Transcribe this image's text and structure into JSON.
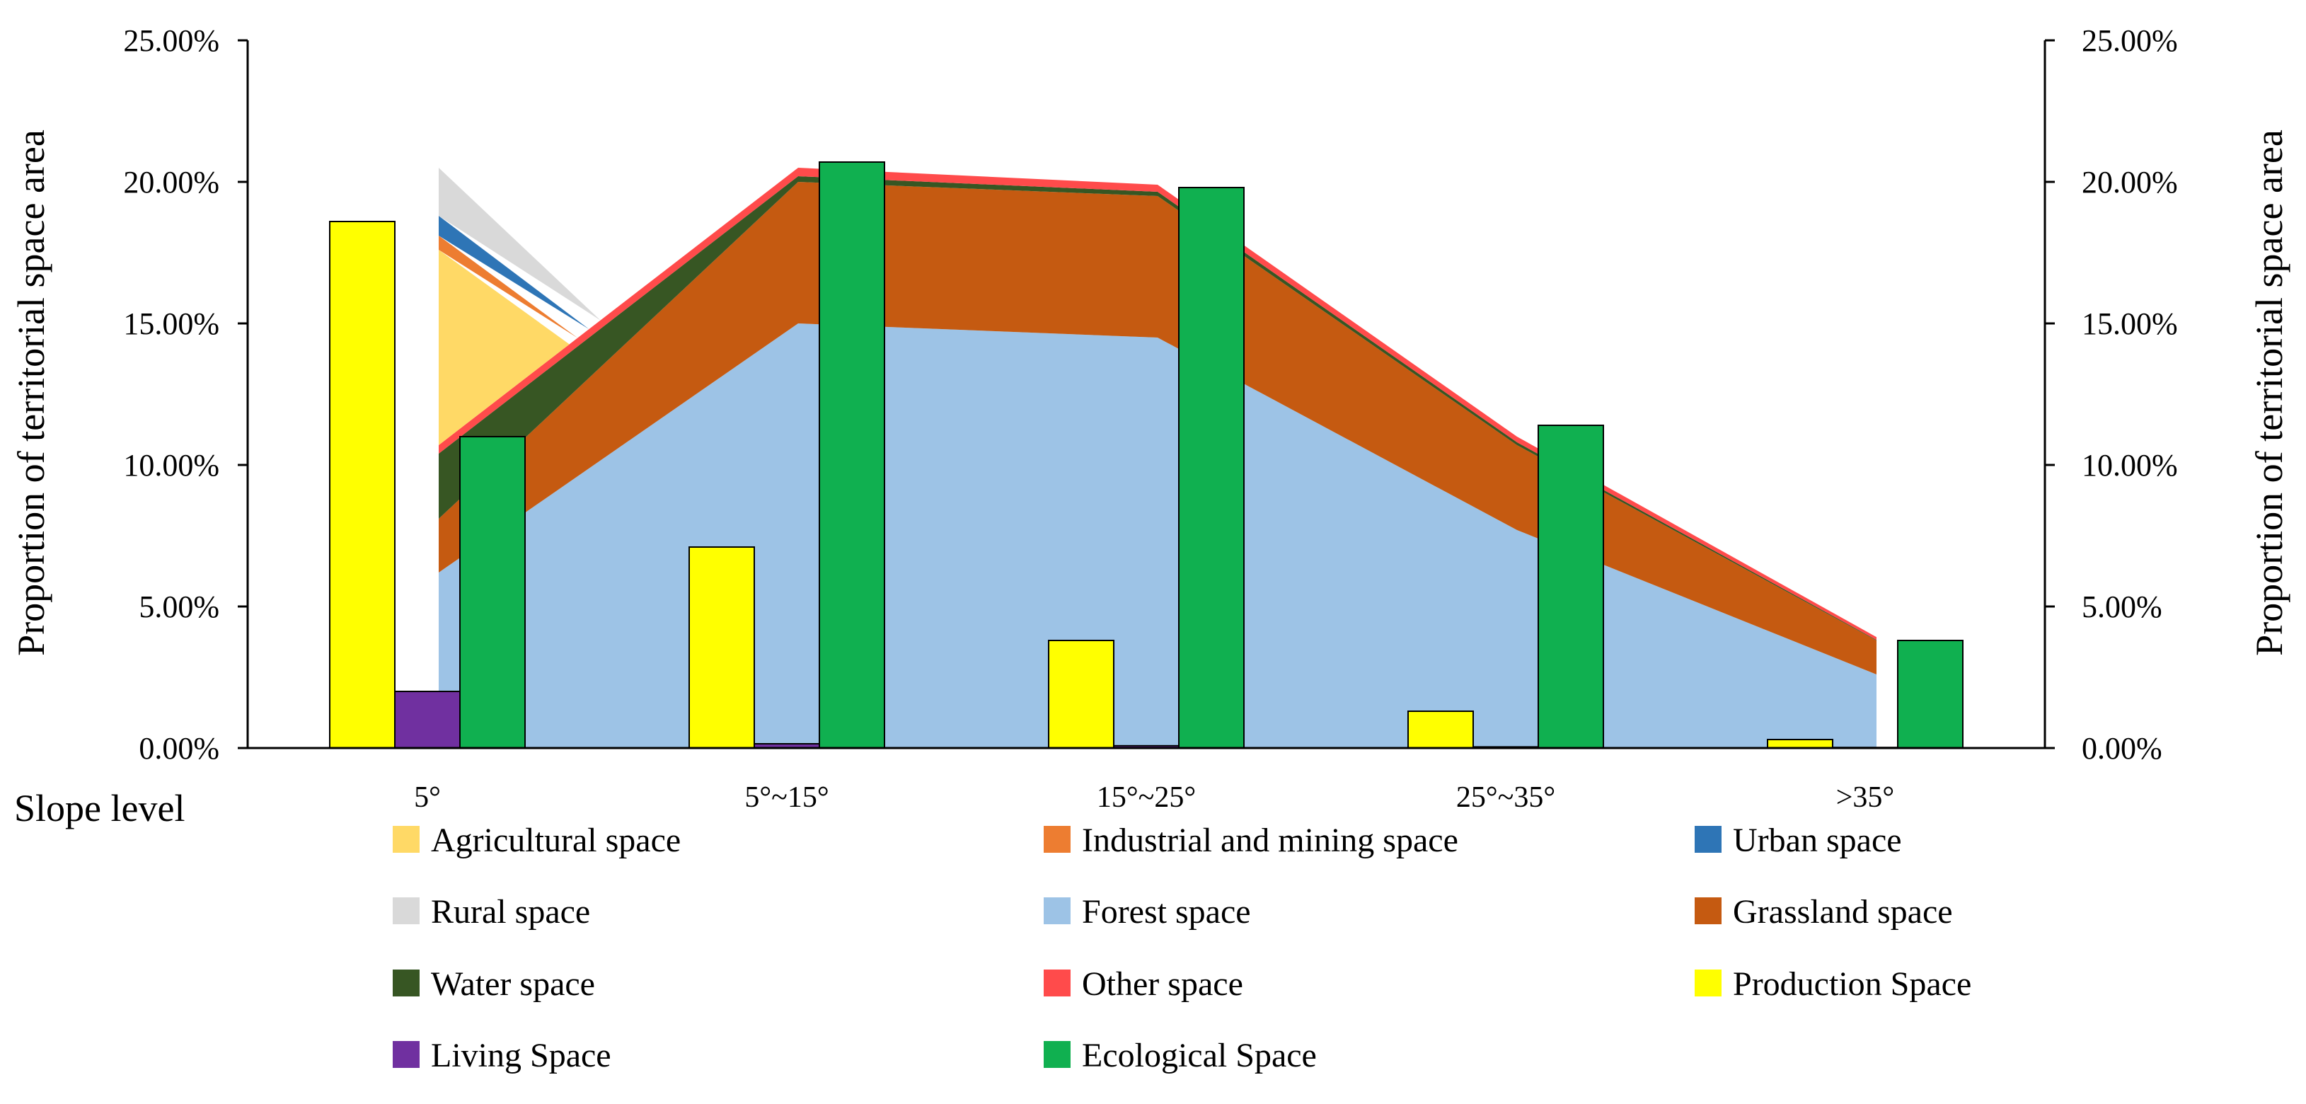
{
  "chart_data": {
    "type": "area+bar",
    "xlabel": "Slope level",
    "ylabel_left": "Proportion of territorial space area",
    "ylabel_right": "Proportion of territorial space area",
    "ylim": [
      0,
      0.25
    ],
    "y_ticks": [
      "0.00%",
      "5.00%",
      "10.00%",
      "15.00%",
      "20.00%",
      "25.00%"
    ],
    "categories": [
      "5°",
      "5°~15°",
      "15°~25°",
      "25°~35°",
      ">35°"
    ],
    "area_series": [
      {
        "name": "Forest space",
        "color": "#9DC3E6",
        "values": [
          6.2,
          15.0,
          14.5,
          7.7,
          2.6
        ]
      },
      {
        "name": "Grassland space",
        "color": "#C55A11",
        "values": [
          1.9,
          5.0,
          5.0,
          3.0,
          1.2
        ]
      },
      {
        "name": "Water space",
        "color": "#375623",
        "values": [
          2.3,
          0.2,
          0.15,
          0.1,
          0.02
        ]
      },
      {
        "name": "Other space",
        "color": "#FF4B4B",
        "values": [
          0.3,
          0.3,
          0.25,
          0.2,
          0.1
        ]
      },
      {
        "name": "Agricultural space",
        "color": "#FFD966",
        "values": [
          6.9,
          0,
          0,
          0,
          0
        ]
      },
      {
        "name": "Industrial and mining space",
        "color": "#ED7D31",
        "values": [
          0.5,
          0,
          0,
          0,
          0
        ]
      },
      {
        "name": "Urban space",
        "color": "#2E75B6",
        "values": [
          0.7,
          0,
          0,
          0,
          0
        ]
      },
      {
        "name": "Rural space",
        "color": "#D9D9D9",
        "values": [
          1.7,
          0,
          0,
          0,
          0
        ]
      }
    ],
    "bar_series": [
      {
        "name": "Production Space",
        "color": "#FFFF00",
        "values": [
          18.6,
          7.1,
          3.8,
          1.3,
          0.3
        ]
      },
      {
        "name": "Living Space",
        "color": "#7030A0",
        "values": [
          2.0,
          0.15,
          0.08,
          0.04,
          0.02
        ]
      },
      {
        "name": "Ecological Space",
        "color": "#10B050",
        "values": [
          11.0,
          20.7,
          19.8,
          11.4,
          3.8
        ]
      }
    ],
    "legend": [
      {
        "label": "Agricultural space",
        "color": "#FFD966"
      },
      {
        "label": "Industrial and mining space",
        "color": "#ED7D31"
      },
      {
        "label": "Urban space",
        "color": "#2E75B6"
      },
      {
        "label": "Rural space",
        "color": "#D9D9D9"
      },
      {
        "label": "Forest space",
        "color": "#9DC3E6"
      },
      {
        "label": "Grassland space",
        "color": "#C55A11"
      },
      {
        "label": "Water space",
        "color": "#375623"
      },
      {
        "label": "Other space",
        "color": "#FF4B4B"
      },
      {
        "label": "Production Space",
        "color": "#FFFF00"
      },
      {
        "label": "Living Space",
        "color": "#7030A0"
      },
      {
        "label": "Ecological Space",
        "color": "#10B050"
      }
    ],
    "legend_position": "bottom",
    "grid": false
  }
}
